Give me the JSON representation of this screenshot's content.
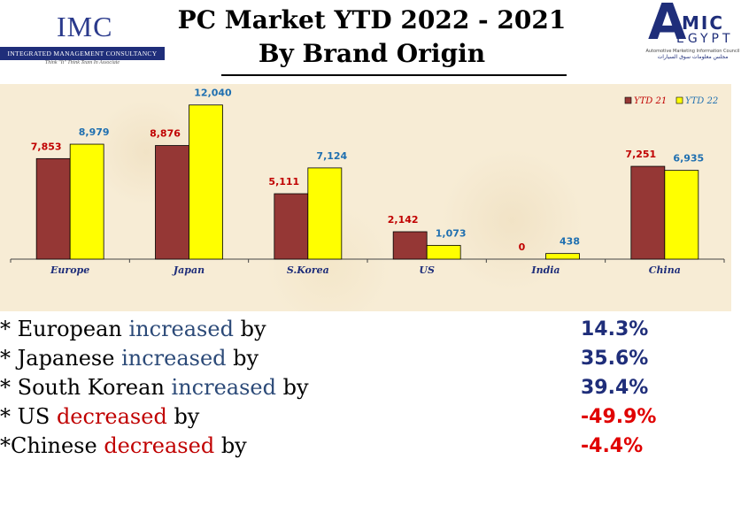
{
  "header": {
    "imc_logo_text": "IMC",
    "imc_full_name": "INTEGRATED MANAGEMENT CONSULTANCY",
    "imc_tagline": "Think \"It\" Think Team In Associate",
    "title_line1": "PC Market YTD 2022 - 2021",
    "title_line2": "By Brand Origin",
    "amic_logo_letter": "A",
    "amic_logo_mic": "MIC",
    "amic_logo_egypt": "EGYPT",
    "amic_logo_sub": "Automotive Marketing Information Council",
    "amic_logo_arabic": "مجلس معلومات سوق السيارات"
  },
  "chart_data": {
    "type": "bar",
    "categories": [
      "Europe",
      "Japan",
      "S.Korea",
      "US",
      "India",
      "China"
    ],
    "series": [
      {
        "name": "YTD 21",
        "values": [
          7853,
          8876,
          5111,
          2142,
          0,
          7251
        ],
        "color": "#953735",
        "label_color": "#c00000"
      },
      {
        "name": "YTD 22",
        "values": [
          8979,
          12040,
          7124,
          1073,
          438,
          6935
        ],
        "color": "#ffff00",
        "label_color": "#1f6fb0"
      }
    ],
    "value_labels": [
      [
        "7,853",
        "8,876",
        "5,111",
        "2,142",
        "0",
        "7,251"
      ],
      [
        "8,979",
        "12,040",
        "7,124",
        "1,073",
        "438",
        "6,935"
      ]
    ],
    "ylim": [
      0,
      13000
    ],
    "legend_position": "top-right",
    "grid": false,
    "title": "PC Market YTD 2022 - 2021 By Brand Origin"
  },
  "stats": [
    {
      "prefix": "* ",
      "subject": "European ",
      "verb": "increased",
      "suffix": " by",
      "direction": "inc",
      "value": "14.3%",
      "value_color": "#1f2e7a"
    },
    {
      "prefix": "* ",
      "subject": "Japanese ",
      "verb": "increased",
      "suffix": " by",
      "direction": "inc",
      "value": "35.6%",
      "value_color": "#1f2e7a"
    },
    {
      "prefix": "* ",
      "subject": "South Korean ",
      "verb": "increased",
      "suffix": " by",
      "direction": "inc",
      "value": "39.4%",
      "value_color": "#1f2e7a"
    },
    {
      "prefix": "* ",
      "subject": "US ",
      "verb": "decreased",
      "suffix": " by",
      "direction": "dec",
      "value": "-49.9%",
      "value_color": "#e00000"
    },
    {
      "prefix": "*",
      "subject": "Chinese ",
      "verb": "decreased",
      "suffix": " by",
      "direction": "dec",
      "value": "-4.4%",
      "value_color": "#e00000"
    }
  ]
}
